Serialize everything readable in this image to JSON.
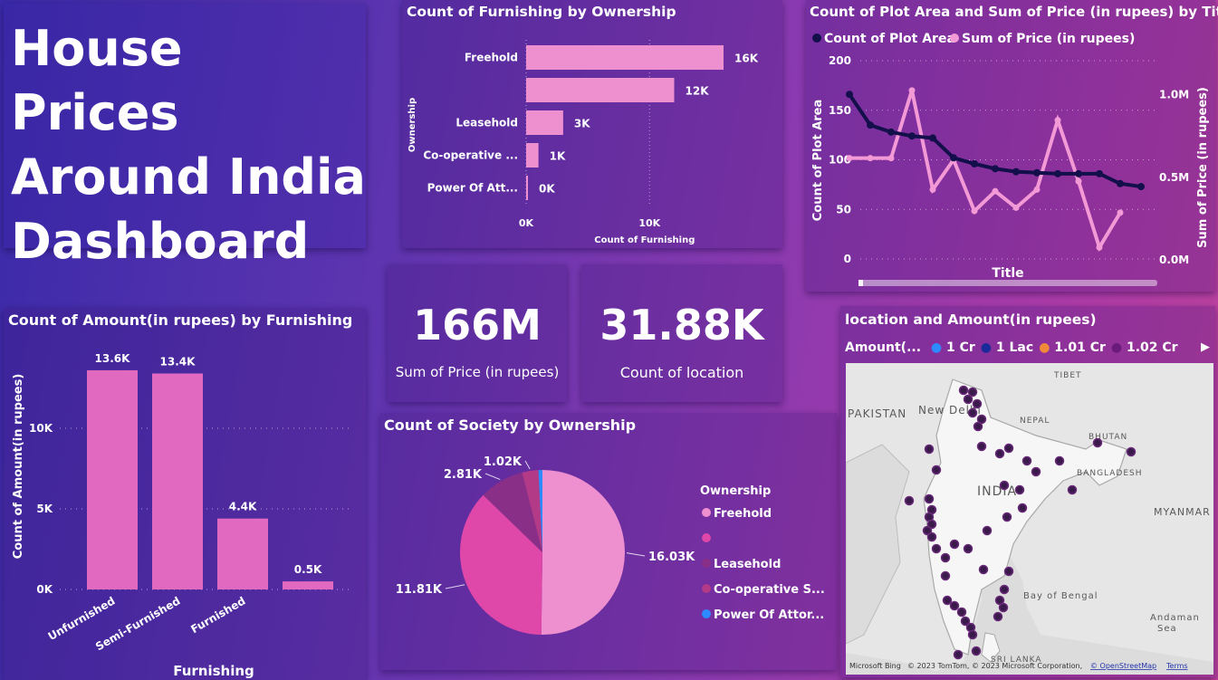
{
  "dashboard": {
    "title_lines": [
      "House Prices",
      "Around India",
      "Dashboard"
    ]
  },
  "colors": {
    "bar_pink": "#ee8fcf",
    "bar_magenta": "#e269c0",
    "line_navy": "#120f4a",
    "line_pink": "#f39ad6",
    "pie_freehold": "#ee8fcf",
    "pie_blank": "#df47a9",
    "pie_leasehold": "#8a2f88",
    "pie_coop": "#b23a86",
    "pie_poa": "#2d8bff"
  },
  "furnishing_by_ownership": {
    "title": "Count of Furnishing by Ownership",
    "chart_data": {
      "type": "bar",
      "orientation": "horizontal",
      "categories": [
        "Freehold",
        "",
        "Leasehold",
        "Co-operative ...",
        "Power Of Att..."
      ],
      "values": [
        16000,
        12000,
        3000,
        1000,
        0
      ],
      "data_labels": [
        "16K",
        "12K",
        "3K",
        "1K",
        "0K"
      ],
      "xlabel": "Count of Furnishing",
      "ylabel": "Ownership",
      "x_ticks": [
        "0K",
        "10K"
      ],
      "xlim": [
        0,
        16000
      ]
    }
  },
  "plot_area_price": {
    "title": "Count of Plot Area and Sum of Price (in rupees) by Title",
    "legend": [
      "Count of Plot Area",
      "Sum of Price (in rupees)"
    ],
    "chart_data": {
      "type": "line",
      "x": [
        1,
        2,
        3,
        4,
        5,
        6,
        7,
        8,
        9,
        10,
        11,
        12,
        13,
        14,
        15
      ],
      "series": [
        {
          "name": "Count of Plot Area",
          "axis": "left",
          "values": [
            166,
            135,
            128,
            124,
            122,
            102,
            96,
            91,
            88,
            87,
            86,
            86,
            86,
            76,
            73
          ]
        },
        {
          "name": "Sum of Price (in rupees)",
          "axis": "right",
          "values": [
            0.61,
            0.61,
            0.61,
            1.02,
            0.42,
            0.6,
            0.29,
            0.41,
            0.31,
            0.42,
            0.84,
            0.47,
            0.07,
            0.28,
            null
          ]
        }
      ],
      "xlabel": "Title",
      "ylabel_left": "Count of Plot Area",
      "ylabel_right": "Sum of Price (in rupees)",
      "ylim_left": [
        0,
        200
      ],
      "ylim_right": [
        0,
        1.2
      ],
      "left_ticks": [
        "0",
        "50",
        "100",
        "150",
        "200"
      ],
      "right_ticks": [
        "0.0M",
        "0.5M",
        "1.0M"
      ]
    }
  },
  "amount_by_furnishing": {
    "title": "Count of Amount(in rupees) by Furnishing",
    "chart_data": {
      "type": "bar",
      "categories": [
        "Unfurnished",
        "Semi-Furnished",
        "Furnished",
        ""
      ],
      "values": [
        13600,
        13400,
        4400,
        500
      ],
      "data_labels": [
        "13.6K",
        "13.4K",
        "4.4K",
        "0.5K"
      ],
      "xlabel": "Furnishing",
      "ylabel": "Count of Amount(in rupees)",
      "y_ticks": [
        "0K",
        "5K",
        "10K"
      ],
      "ylim": [
        0,
        15000
      ]
    }
  },
  "kpi_price": {
    "value": "166M",
    "label": "Sum of Price (in rupees)"
  },
  "kpi_location": {
    "value": "31.88K",
    "label": "Count of location"
  },
  "society_by_ownership": {
    "title": "Count of Society by Ownership",
    "legend_title": "Ownership",
    "chart_data": {
      "type": "pie",
      "labels": [
        "Freehold",
        "",
        "Leasehold",
        "Co-operative S...",
        "Power Of Attor..."
      ],
      "values": [
        16.03,
        11.81,
        2.81,
        1.02,
        0.25
      ],
      "data_labels": [
        "16.03K",
        "11.81K",
        "2.81K",
        "1.02K",
        ""
      ]
    }
  },
  "map": {
    "title": "location and Amount(in rupees)",
    "legend_title": "Amount(...",
    "legend": [
      {
        "label": "1 Cr",
        "color": "#2d8bff"
      },
      {
        "label": "1 Lac",
        "color": "#1a2a9a"
      },
      {
        "label": "1.01 Cr",
        "color": "#f08a3a"
      },
      {
        "label": "1.02 Cr",
        "color": "#6a1a7a"
      }
    ],
    "labels": {
      "tibet": "TIBET",
      "pakistan": "PAKISTAN",
      "new_delhi": "New Delhi",
      "nepal": "NEPAL",
      "bhutan": "BHUTAN",
      "bangladesh": "BANGLADESH",
      "india": "INDIA",
      "myanmar": "MYANMAR",
      "bay": "Bay of Bengal",
      "andaman_1": "Andaman",
      "andaman_2": "Sea",
      "sri_lanka": "SRI LANKA"
    },
    "attribution": "© 2023 TomTom, © 2023 Microsoft Corporation,",
    "osm": "© OpenStreetMap",
    "terms": "Terms",
    "bing": "Microsoft Bing"
  }
}
